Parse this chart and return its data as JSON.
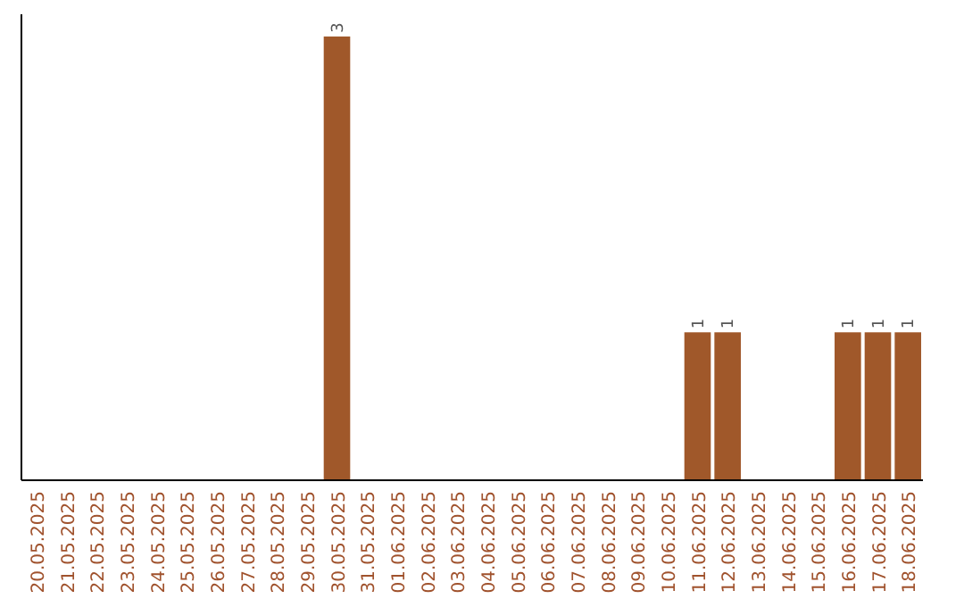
{
  "chart_data": {
    "type": "bar",
    "categories": [
      "20.05.2025",
      "21.05.2025",
      "22.05.2025",
      "23.05.2025",
      "24.05.2025",
      "25.05.2025",
      "26.05.2025",
      "27.05.2025",
      "28.05.2025",
      "29.05.2025",
      "30.05.2025",
      "31.05.2025",
      "01.06.2025",
      "02.06.2025",
      "03.06.2025",
      "04.06.2025",
      "05.06.2025",
      "06.06.2025",
      "07.06.2025",
      "08.06.2025",
      "09.06.2025",
      "10.06.2025",
      "11.06.2025",
      "12.06.2025",
      "13.06.2025",
      "14.06.2025",
      "15.06.2025",
      "16.06.2025",
      "17.06.2025",
      "18.06.2025"
    ],
    "values": [
      0,
      0,
      0,
      0,
      0,
      0,
      0,
      0,
      0,
      0,
      3,
      0,
      0,
      0,
      0,
      0,
      0,
      0,
      0,
      0,
      0,
      0,
      1,
      1,
      0,
      0,
      0,
      1,
      1,
      1
    ],
    "value_labels": [
      null,
      null,
      null,
      null,
      null,
      null,
      null,
      null,
      null,
      null,
      "3",
      null,
      null,
      null,
      null,
      null,
      null,
      null,
      null,
      null,
      null,
      null,
      "1",
      "1",
      null,
      null,
      null,
      "1",
      "1",
      "1"
    ],
    "color": "#a0582a",
    "tick_labels": "x"
  }
}
